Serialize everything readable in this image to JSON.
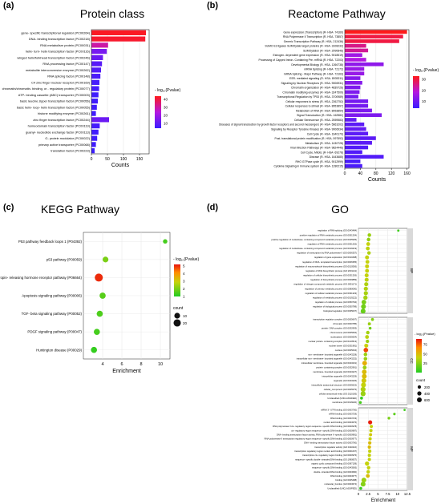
{
  "colors": {
    "high": "#ff1a1a",
    "low": "#3a1cff",
    "axis": "#222222",
    "grid": "#e6e6e6",
    "strip": "#d9d9d9"
  },
  "chart_data": [
    {
      "panel_label": "(a)",
      "title": "Protein class",
      "type": "bar",
      "orientation": "horizontal",
      "xlabel": "Counts",
      "xlim": [
        0,
        180
      ],
      "xticks": [
        0,
        50,
        100,
        150
      ],
      "legend": {
        "title": "- log₁₀(Pvalue)",
        "ticks": [
          10,
          20,
          30,
          40
        ],
        "range": [
          4,
          44
        ],
        "placement": "right"
      },
      "categories": [
        "gene- specific transcriptional regulator (PC00264)",
        "DNA- binding transcription factor (PC00218)",
        "RNA metabolism protein (PC00031)",
        "helix- turn- helix transcription factor (PC00116)",
        "winged helix/forkhead transcription factor (PC00246)",
        "RNA processing factor (PC00147)",
        "metabolite interconversion enzyme (PC00262)",
        "RNA splicing factor (PC00148)",
        "C4 zinc finger nuclear receptor (PC00169)",
        "chromatin/chromatin- binding, or - regulatory protein (PC00077)",
        "ATP- binding cassette (ABC) transporter (PC00003)",
        "basic leucine zipper transcription factor (PC00056)",
        "basic helix- loop- helix transcription factor (PC00055)",
        "histone modifying enzyme (PC00261)",
        "zinc finger transcription factor (PC00244)",
        "homeodomain transcription factor (PC00119)",
        "guanyl- nucleotide exchange factor (PC00113)",
        "G- protein modulator (PC00022)",
        "primary active transporter (PC00068)",
        "translation factor (PC00223)"
      ],
      "values": [
        170,
        168,
        52,
        48,
        36,
        33,
        30,
        28,
        25,
        24,
        22,
        20,
        17,
        14,
        55,
        26,
        22,
        18,
        14,
        10
      ],
      "pvalues": [
        43,
        42,
        30,
        14,
        12,
        9,
        8,
        7,
        6,
        6,
        5,
        5,
        5,
        5,
        12,
        6,
        5,
        5,
        5,
        4
      ]
    },
    {
      "panel_label": "(b)",
      "title": "Reactome Pathway",
      "type": "bar",
      "orientation": "horizontal",
      "xlabel": "Counts",
      "xlim": [
        0,
        165
      ],
      "xticks": [
        0,
        40,
        80,
        120,
        160
      ],
      "legend": {
        "title": "- log₁₀(Pvalue)",
        "ticks": [
          10,
          20,
          30
        ],
        "range": [
          4,
          33
        ],
        "placement": "right"
      },
      "categories": [
        "Gene expression (Transcription) (R- HSA- 74160)",
        "RNA Polymerase II Transcription (R- HSA- 73857)",
        "Generic Transcription Pathway (R- HSA- 212436)",
        "SUMO E3 ligases SUMOylate target proteins (R- HSA- 3108232)",
        "SUMOylation (R- HSA- 2990846)",
        "Estrogen- dependent gene expression (R- HSA- 9018519)",
        "Processing of Capped Intron- Containing Pre- mRNA (R- HSA- 72203)",
        "Developmental Biology (R- HSA- 1266738)",
        "mRNA Splicing (R- HSA- 72172)",
        "mRNA Splicing - Major Pathway (R- HSA- 72163)",
        "ESR- mediated signaling (R- HSA- 8939211)",
        "Signaling by Nuclear Receptors (R- HSA- 9006931)",
        "Chromatin organization (R- HSA- 4839726)",
        "Chromatin modifying enzymes (R- HSA- 3247509)",
        "Transcriptional Regulation by TP53 (R- HSA- 3700989)",
        "Cellular responses to stress (R- HSA- 2262752)",
        "Cellular responses to stimuli (R- HSA- 8953897)",
        "Metabolism of RNA (R- HSA- 8953854)",
        "Signal Transduction (R- HSA- 162582)",
        "Cellular Senescence (R- HSA- 2559583)",
        "Diseases of signal transduction by growth factor receptors and second messengers (R- HSA- 5663202)",
        "Signaling by Receptor Tyrosine Kinases (R- HSA- 9006934)",
        "Cell Cycle (R- HSA- 1640170)",
        "Post- translational protein modification (R- HSA- 597592)",
        "Metabolism (R- HSA- 1430728)",
        "Viral Infection Pathways (R- HSA- 9824446)",
        "Cell Cycle, Mitotic (R- HSA- 69278)",
        "Disease (R- HSA- 1643685)",
        "RHO GTPase cycle (R- HSA- 9012999)",
        "Cytokine Signaling in Immune system (R- HSA- 1280215)"
      ],
      "values": [
        160,
        150,
        140,
        55,
        60,
        45,
        55,
        100,
        50,
        50,
        40,
        45,
        40,
        38,
        35,
        60,
        60,
        70,
        95,
        30,
        50,
        55,
        60,
        80,
        70,
        60,
        45,
        100,
        40,
        45
      ],
      "pvalues": [
        33,
        30,
        30,
        25,
        24,
        16,
        18,
        14,
        15,
        15,
        13,
        13,
        12,
        12,
        11,
        11,
        11,
        12,
        12,
        9,
        8,
        9,
        8,
        8,
        8,
        7,
        7,
        7,
        6,
        6
      ]
    },
    {
      "panel_label": "(c)",
      "title": "KEGG Pathway",
      "type": "scatter",
      "xlabel": "Enrichment",
      "xlim": [
        2,
        11
      ],
      "xticks": [
        4,
        6,
        8,
        10
      ],
      "legend_color": {
        "title": "- log₁₀(Pvalue)",
        "ticks": [
          1,
          2,
          3,
          4,
          5
        ],
        "range": [
          1,
          5.2
        ],
        "placement": "right"
      },
      "legend_size": {
        "title": "count",
        "ticks": [
          10,
          20
        ]
      },
      "categories": [
        "P53 pathway feedback loops 1 (P04392)",
        "p53 pathway (P00059)",
        "Gonadotropin- releasing hormone receptor pathway (P06664)",
        "Apoptosis signaling pathway (P00006)",
        "TGF- beta signaling pathway (P00052)",
        "PDGF signaling pathway (P00047)",
        "Huntington disease (P00029)"
      ],
      "x": [
        10.5,
        4.3,
        3.6,
        4.0,
        3.7,
        3.4,
        3.1
      ],
      "count": [
        4,
        10,
        26,
        12,
        12,
        12,
        12
      ],
      "pvalues": [
        1.4,
        2.0,
        5.0,
        1.6,
        1.5,
        1.4,
        1.2
      ]
    },
    {
      "panel_label": "(d)",
      "title": "GO",
      "type": "scatter",
      "xlabel": "Enrichment",
      "xlim": [
        0,
        12.5
      ],
      "xticks": [
        0,
        2.5,
        5,
        7.5,
        10,
        12.5
      ],
      "legend_color": {
        "title": "- log₁₀(Pvalue)",
        "ticks": [
          25,
          50,
          75
        ],
        "range": [
          1,
          90
        ],
        "placement": "right"
      },
      "legend_size": {
        "title": "count",
        "ticks": [
          200,
          400,
          600
        ]
      },
      "facets": [
        {
          "name": "BP",
          "categories": [
            "regulation of RNA splicing (GO:0043484)",
            "positive regulation of RNA metabolic process (GO:0051254)",
            "positive regulation of nucleobase- containing compound metabolic process (GO:0045935)",
            "regulation of RNA metabolic process (GO:0051252)",
            "regulation of nucleobase- containing compound metabolic process (GO:0019219)",
            "regulation of transcription by RNA polymerase II (GO:0006357)",
            "regulation of gene expression (GO:0010468)",
            "regulation of DNA- templated transcription (GO:0006355)",
            "regulation of macromolecule biosynthetic process (GO:0010556)",
            "regulation of RNA biosynthetic process (GO:2001141)",
            "regulation of cellular biosynthetic process (GO:0031326)",
            "regulation of biosynthetic process (GO:0009889)",
            "regulation of nitrogen compound metabolic process (GO:0051171)",
            "regulation of primary metabolic process (GO:0080090)",
            "regulation of cellular metabolic process (GO:0031323)",
            "regulation of metabolic process (GO:0019222)",
            "regulation of cellular process (GO:0050794)",
            "regulation of biological process (GO:0050789)",
            "biological regulation (GO:0065007)"
          ],
          "x": [
            10.2,
            2.8,
            2.6,
            2.5,
            2.4,
            2.7,
            2.2,
            2.3,
            2.2,
            2.2,
            2.1,
            2.1,
            2.0,
            1.9,
            1.9,
            1.8,
            1.4,
            1.3,
            1.2
          ],
          "count": [
            40,
            250,
            260,
            300,
            310,
            240,
            330,
            300,
            330,
            310,
            340,
            350,
            380,
            400,
            410,
            440,
            560,
            600,
            620
          ],
          "pvalues": [
            8,
            30,
            28,
            40,
            38,
            35,
            40,
            40,
            42,
            40,
            40,
            38,
            35,
            35,
            33,
            32,
            22,
            20,
            18
          ]
        },
        {
          "name": "CC",
          "categories": [
            "transcription regulator complex (GO:0005667)",
            "chromatin (GO:0000785)",
            "protein- DNA complex (GO:0032993)",
            "chromosome (GO:0005694)",
            "nucleoplasm (GO:0005654)",
            "nuclear protein- containing complex (GO:0140513)",
            "nuclear lumen (GO:0031981)",
            "nucleus (GO:0005634)",
            "non- membrane- bounded organelle (GO:0043228)",
            "intracellular non- membrane- bounded organelle (GO:0043232)",
            "intracellular membrane- bounded organelle (GO:0043231)",
            "protein- containing complex (GO:0032991)",
            "membrane- bounded organelle (GO:0043227)",
            "intracellular organelle (GO:0043229)",
            "organelle (GO:0043226)",
            "intracellular anatomical structure (GO:0005622)",
            "cellular_component (GO:0005575)",
            "cellular anatomical entity (GO:0110165)",
            "Unclassified (UNCLASSIFIED)",
            "membrane (GO:0016020)"
          ],
          "x": [
            3.6,
            2.8,
            3.0,
            2.4,
            2.2,
            2.3,
            2.0,
            1.9,
            1.8,
            1.8,
            1.6,
            1.6,
            1.5,
            1.5,
            1.4,
            1.3,
            1.2,
            1.2,
            0.8,
            0.5
          ],
          "count": [
            120,
            150,
            90,
            220,
            300,
            200,
            340,
            520,
            260,
            260,
            560,
            320,
            560,
            600,
            620,
            640,
            660,
            660,
            120,
            100
          ],
          "pvalues": [
            25,
            30,
            20,
            32,
            38,
            30,
            42,
            80,
            30,
            30,
            55,
            30,
            50,
            50,
            45,
            40,
            35,
            30,
            5,
            10
          ]
        },
        {
          "name": "MF",
          "categories": [
            "mRNA 3'- UTR binding (GO:0003730)",
            "mRNA binding (GO:0003729)",
            "RNA binding (GO:0003723)",
            "nucleic acid binding (GO:0003676)",
            "RNA polymerase II cis- regulatory region sequence- specific DNA binding (GO:0000978)",
            "cis- regulatory region sequence- specific DNA binding (GO:0000987)",
            "DNA- binding transcription factor activity, RNA polymerase II- specific (GO:0000981)",
            "RNA polymerase II transcription regulatory region sequence- specific DNA binding (GO:0000977)",
            "DNA- binding transcription factor activity (GO:0003700)",
            "transcription regulator activity (GO:0140110)",
            "transcription regulatory region nucleic acid binding (GO:0001067)",
            "transcription cis- regulatory region binding (GO:0000976)",
            "sequence- specific double- stranded DNA binding (GO:1990837)",
            "organic cyclic compound binding (GO:0097159)",
            "sequence- specific DNA binding (GO:0043565)",
            "double- stranded DNA binding (GO:0003690)",
            "DNA binding (GO:0003677)",
            "binding (GO:0005488)",
            "molecular_function (GO:0003674)",
            "Unclassified (UNCLASSIFIED)"
          ],
          "x": [
            11.8,
            9.2,
            7.8,
            3.0,
            3.3,
            3.2,
            3.1,
            3.0,
            2.9,
            2.8,
            2.9,
            2.8,
            2.8,
            2.2,
            2.6,
            2.5,
            2.4,
            1.4,
            1.2,
            0.6
          ],
          "count": [
            30,
            60,
            90,
            380,
            160,
            170,
            150,
            160,
            200,
            210,
            180,
            180,
            180,
            420,
            220,
            220,
            300,
            600,
            620,
            110
          ],
          "pvalues": [
            8,
            15,
            22,
            88,
            40,
            40,
            45,
            40,
            50,
            50,
            40,
            40,
            40,
            40,
            40,
            40,
            50,
            30,
            25,
            5
          ]
        }
      ]
    }
  ]
}
